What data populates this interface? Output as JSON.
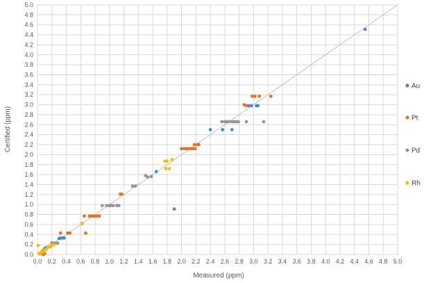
{
  "chart_data": {
    "type": "scatter",
    "title": "",
    "xlabel": "Measured (ppm)",
    "ylabel": "Certified (ppm)",
    "xlim": [
      0,
      5
    ],
    "ylim": [
      0,
      5
    ],
    "x_ticks": [
      "0.0",
      "0.2",
      "0.4",
      "0.6",
      "0.8",
      "1.0",
      "1.2",
      "1.4",
      "1.6",
      "1.8",
      "2.0",
      "2.2",
      "2.4",
      "2.6",
      "2.8",
      "3.0",
      "3.2",
      "3.4",
      "3.6",
      "3.8",
      "4.0",
      "4.2",
      "4.4",
      "4.6",
      "4.8",
      "5.0"
    ],
    "y_ticks": [
      "0.0",
      "0.2",
      "0.4",
      "0.6",
      "0.8",
      "1.0",
      "1.2",
      "1.4",
      "1.6",
      "1.8",
      "2.0",
      "2.2",
      "2.4",
      "2.6",
      "2.8",
      "3.0",
      "3.2",
      "3.4",
      "3.6",
      "3.8",
      "4.0",
      "4.2",
      "4.4",
      "4.6",
      "4.8",
      "5.0"
    ],
    "grid": "both",
    "legend_position": "right",
    "reference_line": [
      [
        0,
        0
      ],
      [
        5,
        5
      ]
    ],
    "series": [
      {
        "name": "Au",
        "color": "#4a8ac8",
        "points": [
          [
            0.05,
            0.03
          ],
          [
            0.06,
            0.05
          ],
          [
            0.09,
            0.1
          ],
          [
            0.11,
            0.13
          ],
          [
            0.12,
            0.14
          ],
          [
            0.13,
            0.14
          ],
          [
            0.15,
            0.15
          ],
          [
            0.17,
            0.15
          ],
          [
            0.3,
            0.32
          ],
          [
            0.32,
            0.33
          ],
          [
            0.35,
            0.33
          ],
          [
            0.37,
            0.33
          ],
          [
            0.62,
            0.62
          ],
          [
            1.65,
            1.66
          ],
          [
            1.9,
            0.91
          ],
          [
            2.4,
            2.5
          ],
          [
            2.57,
            2.5
          ],
          [
            2.7,
            2.5
          ],
          [
            2.93,
            2.98
          ],
          [
            2.97,
            2.98
          ],
          [
            3.04,
            2.98
          ],
          [
            3.06,
            2.98
          ],
          [
            4.55,
            4.51
          ]
        ]
      },
      {
        "name": "Pt",
        "color": "#e0762d",
        "points": [
          [
            0.08,
            0.0
          ],
          [
            0.1,
            0.02
          ],
          [
            0.32,
            0.43
          ],
          [
            0.42,
            0.43
          ],
          [
            0.45,
            0.43
          ],
          [
            0.65,
            0.77
          ],
          [
            0.67,
            0.43
          ],
          [
            0.72,
            0.77
          ],
          [
            0.75,
            0.77
          ],
          [
            0.78,
            0.77
          ],
          [
            0.8,
            0.77
          ],
          [
            0.83,
            0.77
          ],
          [
            0.86,
            0.77
          ],
          [
            1.15,
            1.21
          ],
          [
            1.17,
            1.21
          ],
          [
            2.0,
            2.12
          ],
          [
            2.04,
            2.12
          ],
          [
            2.07,
            2.12
          ],
          [
            2.1,
            2.12
          ],
          [
            2.13,
            2.12
          ],
          [
            2.16,
            2.12
          ],
          [
            2.19,
            2.12
          ],
          [
            2.18,
            2.2
          ],
          [
            2.22,
            2.2
          ],
          [
            2.24,
            2.2
          ],
          [
            2.87,
            3.0
          ],
          [
            2.9,
            2.98
          ],
          [
            2.98,
            3.17
          ],
          [
            3.02,
            3.17
          ],
          [
            3.08,
            3.17
          ],
          [
            3.24,
            3.17
          ]
        ]
      },
      {
        "name": "Pd",
        "color": "#969696",
        "points": [
          [
            0.2,
            0.23
          ],
          [
            0.23,
            0.23
          ],
          [
            0.26,
            0.23
          ],
          [
            0.28,
            0.23
          ],
          [
            0.9,
            0.98
          ],
          [
            0.96,
            0.98
          ],
          [
            0.99,
            0.98
          ],
          [
            1.02,
            0.98
          ],
          [
            1.05,
            0.98
          ],
          [
            1.1,
            0.98
          ],
          [
            1.13,
            0.98
          ],
          [
            1.32,
            1.37
          ],
          [
            1.36,
            1.37
          ],
          [
            1.5,
            1.58
          ],
          [
            1.53,
            1.55
          ],
          [
            1.58,
            1.56
          ],
          [
            2.56,
            2.66
          ],
          [
            2.6,
            2.66
          ],
          [
            2.63,
            2.66
          ],
          [
            2.66,
            2.66
          ],
          [
            2.7,
            2.66
          ],
          [
            2.73,
            2.66
          ],
          [
            2.76,
            2.66
          ],
          [
            2.79,
            2.66
          ],
          [
            2.9,
            2.66
          ],
          [
            3.14,
            2.66
          ]
        ]
      },
      {
        "name": "Rh",
        "color": "#f4bb16",
        "points": [
          [
            0.01,
            0.18
          ],
          [
            0.02,
            0.02
          ],
          [
            0.03,
            0.01
          ],
          [
            0.04,
            0.03
          ],
          [
            0.06,
            0.07
          ],
          [
            0.08,
            0.05
          ],
          [
            0.1,
            0.09
          ],
          [
            0.12,
            0.1
          ],
          [
            0.14,
            0.14
          ],
          [
            0.16,
            0.15
          ],
          [
            0.18,
            0.17
          ],
          [
            0.2,
            0.18
          ],
          [
            0.23,
            0.2
          ],
          [
            0.62,
            0.62
          ],
          [
            1.77,
            1.87
          ],
          [
            1.8,
            1.87
          ],
          [
            1.78,
            1.72
          ],
          [
            1.83,
            1.72
          ],
          [
            1.87,
            1.9
          ]
        ]
      }
    ]
  }
}
